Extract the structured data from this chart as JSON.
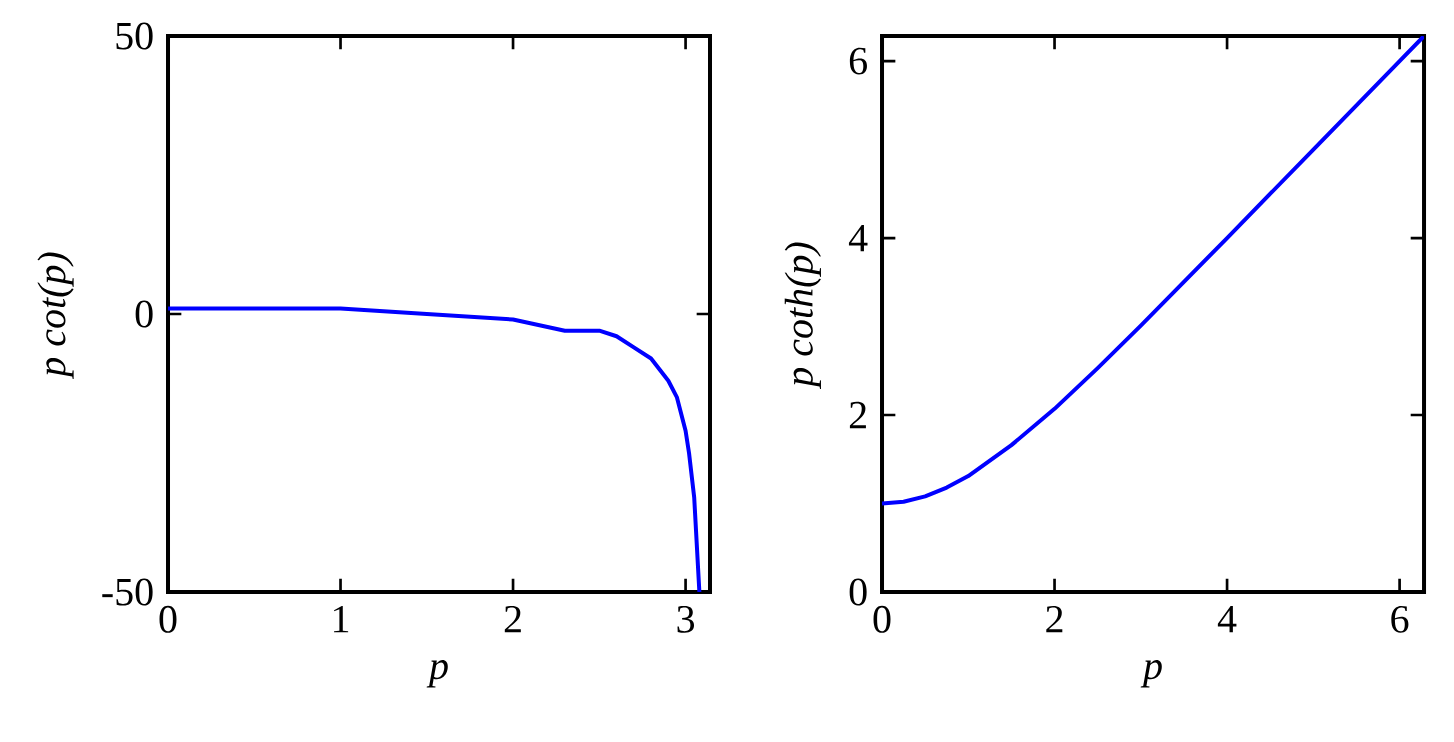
{
  "chart_data": [
    {
      "type": "line",
      "xlabel": "p",
      "ylabel": "p cot(p)",
      "xlim": [
        0,
        3.1416
      ],
      "ylim": [
        -50,
        50
      ],
      "xticks": [
        0,
        1,
        2,
        3
      ],
      "yticks": [
        -50,
        0,
        50
      ],
      "series": [
        {
          "color": "#0000ff",
          "x": [
            0,
            0.5,
            1,
            1.5,
            2,
            2.3,
            2.5,
            2.6,
            2.7,
            2.8,
            2.9,
            2.95,
            3.0,
            3.02,
            3.05,
            3.08
          ],
          "values": [
            1,
            1,
            1,
            0,
            -1,
            -3,
            -3,
            -4,
            -6,
            -8,
            -12,
            -15,
            -21,
            -25,
            -33,
            -50
          ]
        }
      ]
    },
    {
      "type": "line",
      "xlabel": "p",
      "ylabel": "p coth(p)",
      "xlim": [
        0,
        6.2832
      ],
      "ylim": [
        0,
        6.2832
      ],
      "xticks": [
        0,
        2,
        4,
        6
      ],
      "yticks": [
        0,
        2,
        4,
        6
      ],
      "series": [
        {
          "color": "#0000ff",
          "x": [
            0,
            0.25,
            0.5,
            0.75,
            1,
            1.5,
            2,
            2.5,
            3,
            4,
            5,
            6,
            6.28
          ],
          "values": [
            1,
            1.02,
            1.08,
            1.18,
            1.31,
            1.66,
            2.07,
            2.53,
            3.01,
            4.0,
            5.0,
            6.0,
            6.28
          ]
        }
      ]
    }
  ]
}
